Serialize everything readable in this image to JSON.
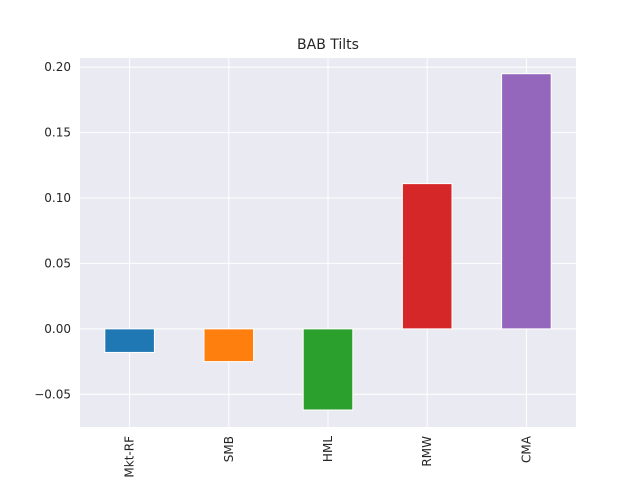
{
  "chart_data": {
    "type": "bar",
    "title": "BAB Tilts",
    "xlabel": "",
    "ylabel": "",
    "categories": [
      "Mkt-RF",
      "SMB",
      "HML",
      "RMW",
      "CMA"
    ],
    "values": [
      -0.018,
      -0.025,
      -0.062,
      0.111,
      0.195
    ],
    "colors": [
      "#1f77b4",
      "#ff7f0e",
      "#2ca02c",
      "#d62728",
      "#9467bd"
    ],
    "ylim": [
      -0.075,
      0.207
    ],
    "yticks": [
      -0.05,
      0.0,
      0.05,
      0.1,
      0.15,
      0.2
    ],
    "ytick_labels": [
      "−0.05",
      "0.00",
      "0.05",
      "0.10",
      "0.15",
      "0.20"
    ],
    "grid": true,
    "background": "#eaeaf2",
    "legend": "none"
  }
}
